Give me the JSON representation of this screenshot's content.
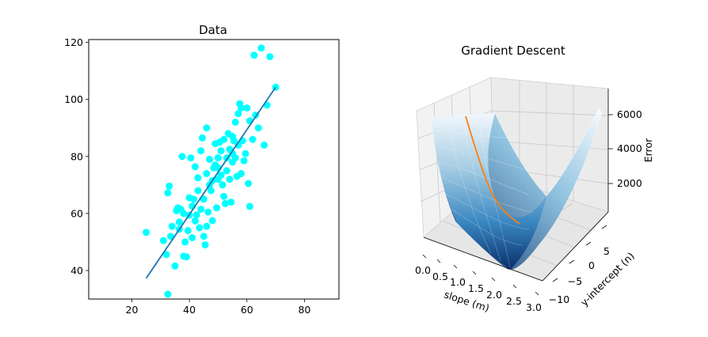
{
  "chart_data": [
    {
      "type": "scatter",
      "title": "Data",
      "xlabel": "",
      "ylabel": "",
      "xlim": [
        5,
        92
      ],
      "ylim": [
        30,
        121
      ],
      "xticks": [
        20,
        40,
        60,
        80
      ],
      "yticks": [
        40,
        60,
        80,
        100,
        120
      ],
      "point_color": "#00ffff",
      "line_color": "#1f77b4",
      "points": [
        [
          32.5,
          31.7
        ],
        [
          25,
          53.4
        ],
        [
          31,
          50.5
        ],
        [
          32,
          45.6
        ],
        [
          32.5,
          67.2
        ],
        [
          33,
          69.6
        ],
        [
          33.5,
          52
        ],
        [
          34,
          55.5
        ],
        [
          35,
          41.6
        ],
        [
          35.5,
          61
        ],
        [
          36,
          62
        ],
        [
          36.5,
          57
        ],
        [
          37,
          61.5
        ],
        [
          37.5,
          80
        ],
        [
          38,
          60
        ],
        [
          38,
          45
        ],
        [
          38.5,
          50
        ],
        [
          39,
          44.8
        ],
        [
          39.5,
          54
        ],
        [
          40,
          65.5
        ],
        [
          40,
          59.4
        ],
        [
          40.5,
          79.5
        ],
        [
          41,
          51.5
        ],
        [
          41,
          62.6
        ],
        [
          41.5,
          65
        ],
        [
          42,
          57.4
        ],
        [
          42,
          76.4
        ],
        [
          42.5,
          59.5
        ],
        [
          43,
          68
        ],
        [
          43,
          72.5
        ],
        [
          43.5,
          55
        ],
        [
          44,
          61.5
        ],
        [
          44,
          82
        ],
        [
          44.5,
          86.5
        ],
        [
          45,
          65
        ],
        [
          45,
          52
        ],
        [
          45.5,
          49
        ],
        [
          46,
          90
        ],
        [
          46,
          74
        ],
        [
          46.5,
          60.5
        ],
        [
          47,
          70
        ],
        [
          47,
          79
        ],
        [
          47.5,
          68
        ],
        [
          48,
          71.5
        ],
        [
          48,
          57.5
        ],
        [
          48.5,
          76
        ],
        [
          49,
          77
        ],
        [
          49,
          84.5
        ],
        [
          49.5,
          62
        ],
        [
          50,
          79.5
        ],
        [
          50,
          72
        ],
        [
          50.5,
          85
        ],
        [
          51,
          82
        ],
        [
          51,
          73.5
        ],
        [
          51.5,
          70
        ],
        [
          52,
          66
        ],
        [
          52,
          86
        ],
        [
          52.5,
          63.5
        ],
        [
          53,
          75
        ],
        [
          53,
          79.5
        ],
        [
          53.5,
          88
        ],
        [
          54,
          72
        ],
        [
          54,
          82.5
        ],
        [
          54.5,
          64
        ],
        [
          55,
          78
        ],
        [
          55,
          81
        ],
        [
          55.5,
          85.5
        ],
        [
          56,
          92
        ],
        [
          56,
          79.5
        ],
        [
          56.5,
          73
        ],
        [
          57,
          84
        ],
        [
          57,
          95
        ],
        [
          57.5,
          98.5
        ],
        [
          58,
          74
        ],
        [
          58,
          97
        ],
        [
          58.5,
          85.5
        ],
        [
          59,
          78.5
        ],
        [
          59.5,
          81
        ],
        [
          60,
          97
        ],
        [
          60.5,
          70.5
        ],
        [
          61,
          62.5
        ],
        [
          61,
          92.5
        ],
        [
          62,
          86
        ],
        [
          62.5,
          115.5
        ],
        [
          63,
          94.5
        ],
        [
          64,
          90
        ],
        [
          65,
          118
        ],
        [
          66,
          84
        ],
        [
          67,
          98
        ],
        [
          68,
          115
        ],
        [
          70,
          104.3
        ],
        [
          36.5,
          54.5
        ],
        [
          46,
          55.5
        ],
        [
          50,
          76
        ],
        [
          55,
          87
        ]
      ],
      "fit_line": {
        "x": [
          25,
          70
        ],
        "y": [
          37.3,
          104.3
        ]
      }
    },
    {
      "type": "surface",
      "title": "Gradient Descent",
      "xlabel": "slope (m)",
      "ylabel": "y-intercept (n)",
      "zlabel": "Error",
      "xlim": [
        0.0,
        3.0
      ],
      "ylim": [
        -10,
        10
      ],
      "zlim": [
        0,
        7000
      ],
      "xticks": [
        "0.0",
        "0.5",
        "1.0",
        "1.5",
        "2.0",
        "2.5",
        "3.0"
      ],
      "yticks": [
        "−10",
        "−5",
        "0",
        "5"
      ],
      "zticks": [
        "2000",
        "4000",
        "6000"
      ],
      "colormap": "Blues",
      "path_color": "#ff7f0e"
    }
  ]
}
